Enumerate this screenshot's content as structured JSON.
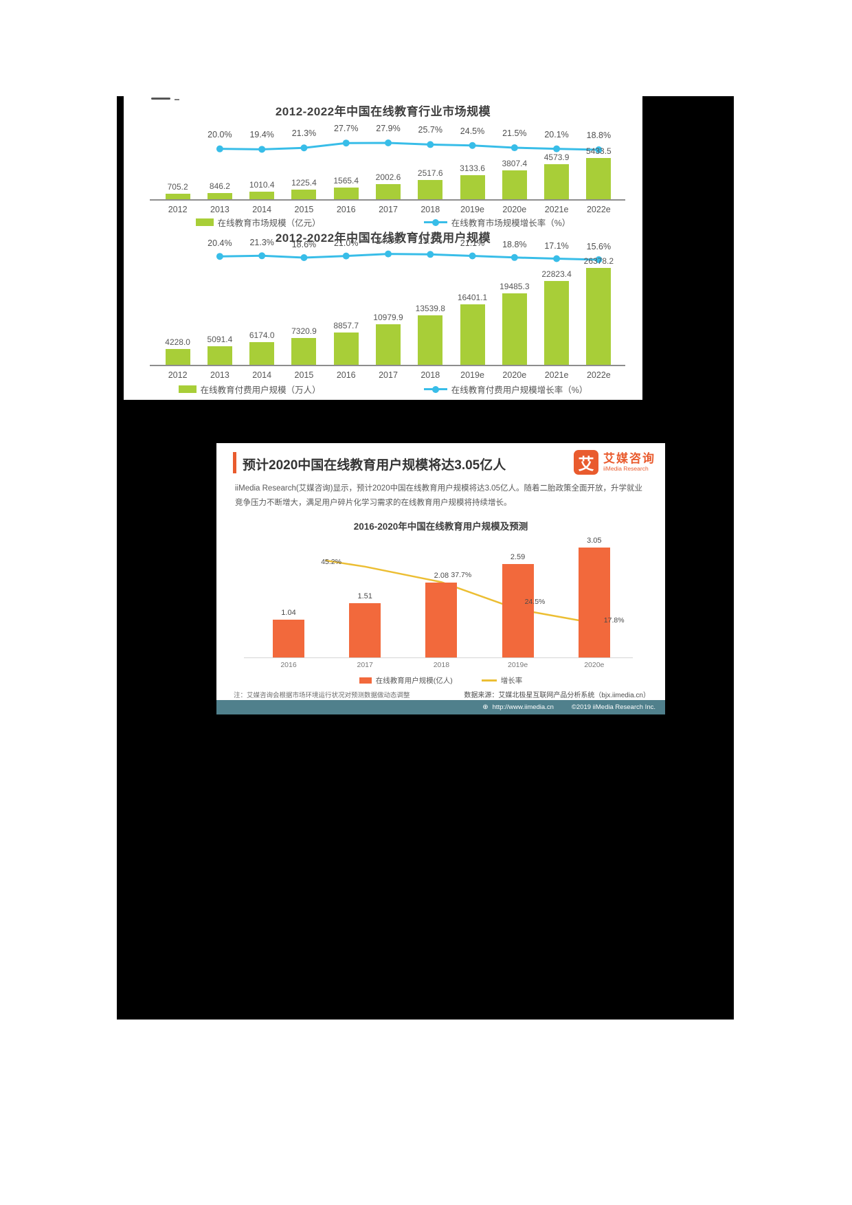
{
  "colors": {
    "green": "#a8ce38",
    "blue": "#38bde8",
    "orange": "#e95b2e",
    "orange_bar": "#f2693c",
    "yellow": "#ecbe33",
    "footer_strip": "#50808c",
    "axis": "#8d8d8d"
  },
  "chart_data": [
    {
      "type": "bar",
      "title": "2012-2022年中国在线教育行业市场规模",
      "categories": [
        "2012",
        "2013",
        "2014",
        "2015",
        "2016",
        "2017",
        "2018",
        "2019e",
        "2020e",
        "2021e",
        "2022e"
      ],
      "series": [
        {
          "name": "在线教育市场规模（亿元）",
          "type": "bar",
          "color": "#a8ce38",
          "values": [
            705.2,
            846.2,
            1010.4,
            1225.4,
            1565.4,
            2002.6,
            2517.6,
            3133.6,
            3807.4,
            4573.9,
            5433.5
          ],
          "labels": [
            "705.2",
            "846.2",
            "1010.4",
            "1225.4",
            "1565.4",
            "2002.6",
            "2517.6",
            "3133.6",
            "3807.4",
            "4573.9",
            "5433.5"
          ]
        },
        {
          "name": "在线教育市场规模增长率（%）",
          "type": "line",
          "color": "#38bde8",
          "values": [
            null,
            20.0,
            19.4,
            21.3,
            27.7,
            27.9,
            25.7,
            24.5,
            21.5,
            20.1,
            18.8
          ],
          "labels": [
            null,
            "20.0%",
            "19.4%",
            "21.3%",
            "27.7%",
            "27.9%",
            "25.7%",
            "24.5%",
            "21.5%",
            "20.1%",
            "18.8%"
          ]
        }
      ],
      "legend_position": "bottom",
      "grid": false
    },
    {
      "type": "bar",
      "title": "2012-2022年中国在线教育付费用户规模",
      "categories": [
        "2012",
        "2013",
        "2014",
        "2015",
        "2016",
        "2017",
        "2018",
        "2019e",
        "2020e",
        "2021e",
        "2022e"
      ],
      "series": [
        {
          "name": "在线教育付费用户规模（万人）",
          "type": "bar",
          "color": "#a8ce38",
          "values": [
            4228.0,
            5091.4,
            6174.0,
            7320.9,
            8857.7,
            10979.9,
            13539.8,
            16401.1,
            19485.3,
            22823.4,
            26378.2
          ],
          "labels": [
            "4228.0",
            "5091.4",
            "6174.0",
            "7320.9",
            "8857.7",
            "10979.9",
            "13539.8",
            "16401.1",
            "19485.3",
            "22823.4",
            "26378.2"
          ]
        },
        {
          "name": "在线教育付费用户规模增长率（%）",
          "type": "line",
          "color": "#38bde8",
          "values": [
            null,
            20.4,
            21.3,
            18.6,
            21.0,
            24.0,
            23.3,
            21.1,
            18.8,
            17.1,
            15.6
          ],
          "labels": [
            null,
            "20.4%",
            "21.3%",
            "18.6%",
            "21.0%",
            "24.0%",
            "23.3%",
            "21.1%",
            "18.8%",
            "17.1%",
            "15.6%"
          ]
        }
      ],
      "legend_position": "bottom",
      "grid": false
    },
    {
      "type": "bar",
      "title": "2016-2020年中国在线教育用户规模及预测",
      "categories": [
        "2016",
        "2017",
        "2018",
        "2019e",
        "2020e"
      ],
      "series": [
        {
          "name": "在线教育用户规模(亿人)",
          "type": "bar",
          "color": "#f2693c",
          "values": [
            1.04,
            1.51,
            2.08,
            2.59,
            3.05
          ],
          "labels": [
            "1.04",
            "1.51",
            "2.08",
            "2.59",
            "3.05"
          ]
        },
        {
          "name": "增长率",
          "type": "line",
          "color": "#ecbe33",
          "values": [
            null,
            45.2,
            37.7,
            24.5,
            17.8
          ],
          "labels": [
            null,
            "45.2%",
            "37.7%",
            "24.5%",
            "17.8%"
          ]
        }
      ],
      "legend_position": "bottom",
      "grid": false
    }
  ],
  "card": {
    "title": "预计2020中国在线教育用户规模将达3.05亿人",
    "logo": {
      "glyph": "艾",
      "name": "艾媒咨询",
      "subtitle": "iiMedia Research"
    },
    "body_line1": "iiMedia Research(艾媒咨询)显示，预计2020中国在线教育用户规模将达3.05亿人。随着二胎政策全面开放，升学就业",
    "body_line2": "竞争压力不断增大，满足用户碎片化学习需求的在线教育用户规模将持续增长。",
    "note": "注：艾媒咨询会根据市场环境运行状况对预测数据做动态调整",
    "source": "数据来源：艾媒北极星互联网产品分析系统（bjx.iimedia.cn）",
    "footer": {
      "globe_icon": "⊕",
      "url": "http://www.iimedia.cn",
      "copyright": "©2019 iiMedia Research Inc."
    }
  }
}
